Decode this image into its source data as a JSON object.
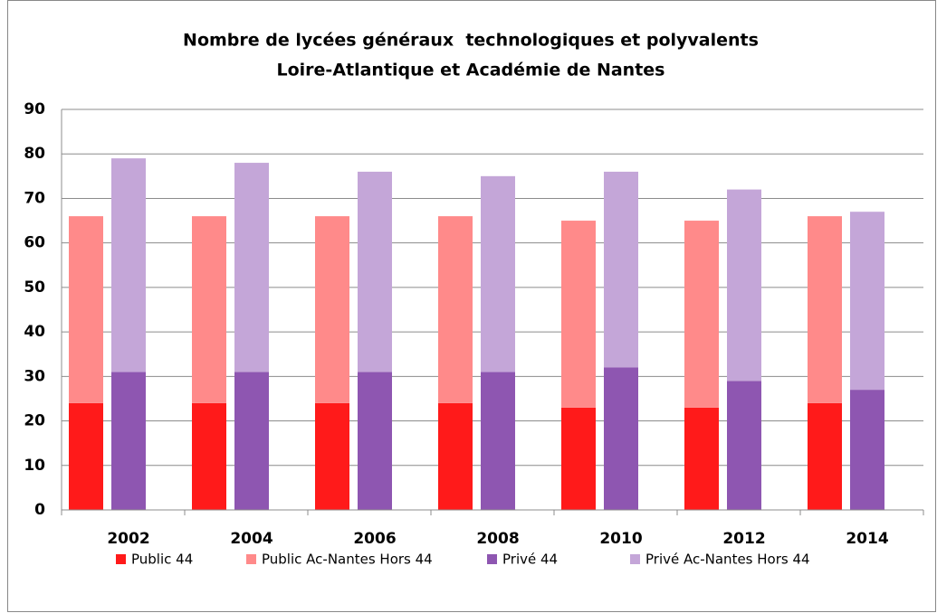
{
  "chart_data": {
    "type": "bar",
    "stacked": true,
    "title": [
      "Nombre de lycées généraux  technologiques et polyvalents",
      "Loire-Atlantique et Académie de Nantes"
    ],
    "categories": [
      "2002",
      "2004",
      "2006",
      "2008",
      "2010",
      "2012",
      "2014"
    ],
    "series": [
      {
        "name": "Public 44",
        "color": "#ff1a1a",
        "stack": 0,
        "values": [
          24,
          24,
          24,
          24,
          23,
          23,
          24
        ]
      },
      {
        "name": "Public Ac-Nantes Hors 44",
        "color": "#ff8a8a",
        "stack": 0,
        "values": [
          42,
          42,
          42,
          42,
          42,
          42,
          42
        ]
      },
      {
        "name": "Privé 44",
        "color": "#8e56b1",
        "stack": 1,
        "values": [
          31,
          31,
          31,
          31,
          32,
          29,
          27
        ]
      },
      {
        "name": "Privé Ac-Nantes Hors 44",
        "color": "#c4a6d8",
        "stack": 1,
        "values": [
          48,
          47,
          45,
          44,
          44,
          43,
          40
        ]
      }
    ],
    "ylim": [
      0,
      90
    ],
    "yticks": [
      0,
      10,
      20,
      30,
      40,
      50,
      60,
      70,
      80,
      90
    ],
    "grid": true,
    "legend": "bottom"
  }
}
